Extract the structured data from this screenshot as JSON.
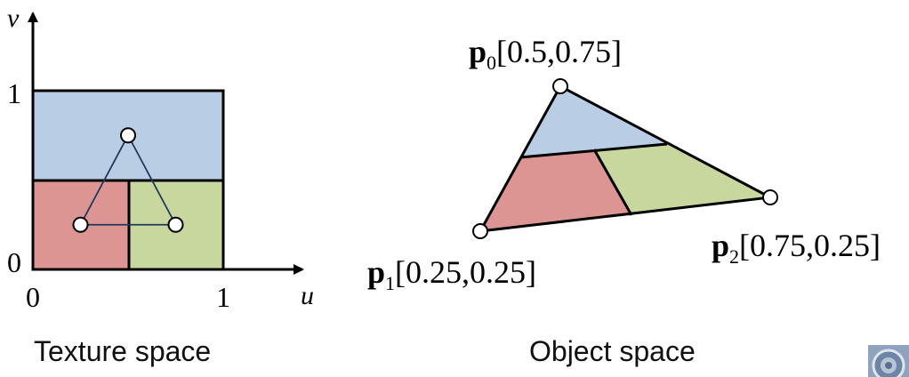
{
  "texture_space": {
    "caption": "Texture space",
    "axis_u_label": "u",
    "axis_v_label": "v",
    "tick_u0": "0",
    "tick_u1": "1",
    "tick_v0": "0",
    "tick_v1": "1",
    "regions": {
      "top": {
        "color": "#b9cde4"
      },
      "bottom_left": {
        "color": "#dc9593"
      },
      "bottom_right": {
        "color": "#c7d79e"
      }
    },
    "points": [
      {
        "name": "p0",
        "u": 0.5,
        "v": 0.75
      },
      {
        "name": "p1",
        "u": 0.25,
        "v": 0.25
      },
      {
        "name": "p2",
        "u": 0.75,
        "v": 0.25
      }
    ]
  },
  "object_space": {
    "caption": "Object space",
    "labels": {
      "p0": {
        "symbol": "p",
        "subscript": "0",
        "coords": "[0.5,0.75]"
      },
      "p1": {
        "symbol": "p",
        "subscript": "1",
        "coords": "[0.25,0.25]"
      },
      "p2": {
        "symbol": "p",
        "subscript": "2",
        "coords": "[0.75,0.25]"
      }
    }
  },
  "colors": {
    "stroke": "#000000",
    "triangle_edge": "#1f3a5a",
    "point_fill": "#ffffff"
  },
  "logo": {
    "icon": "university-seal-icon"
  }
}
